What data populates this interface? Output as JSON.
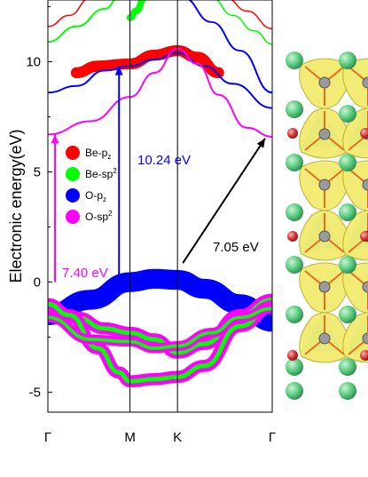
{
  "chart_data": {
    "type": "line",
    "xlabel": "",
    "ylabel": "Electronic energy(eV)",
    "ylim": [
      -5.9,
      12.8
    ],
    "yticks": [
      -5,
      0,
      5,
      10
    ],
    "kpoints": [
      "Γ",
      "M",
      "K",
      "Γ"
    ],
    "kpoint_positions": [
      0,
      0.577,
      0.911,
      1.577
    ],
    "grid": false,
    "legend_position": "left-middle",
    "legend": [
      {
        "base": "Be-p",
        "sub": "z",
        "sup": "",
        "color": "#ff0000"
      },
      {
        "base": "Be-sp",
        "sub": "",
        "sup": "2",
        "color": "#00ff00"
      },
      {
        "base": "O-p",
        "sub": "z",
        "sup": "",
        "color": "#0000ff"
      },
      {
        "base": "O-sp",
        "sub": "",
        "sup": "2",
        "color": "#ff00ff"
      }
    ],
    "series": [
      {
        "role": "valence-top",
        "color": "#0000ff",
        "points": [
          [
            0,
            -1.5
          ],
          [
            0.3,
            -0.8
          ],
          [
            0.577,
            0.0
          ],
          [
            0.75,
            0.15
          ],
          [
            0.911,
            0.1
          ],
          [
            1.1,
            -0.3
          ],
          [
            1.35,
            -1.0
          ],
          [
            1.577,
            -1.8
          ]
        ],
        "width": 0.9
      },
      {
        "role": "valence-mid",
        "color": "#ff00ff",
        "points": [
          [
            0,
            -1.2
          ],
          [
            0.2,
            -1.6
          ],
          [
            0.4,
            -2.1
          ],
          [
            0.577,
            -2.3
          ],
          [
            0.75,
            -2.6
          ],
          [
            0.911,
            -3.2
          ],
          [
            1.1,
            -2.8
          ],
          [
            1.35,
            -1.5
          ],
          [
            1.577,
            -0.8
          ]
        ],
        "width": 0.55
      },
      {
        "role": "valence-mid",
        "color": "#00ff00",
        "points": [
          [
            0,
            -1.2
          ],
          [
            0.2,
            -1.6
          ],
          [
            0.4,
            -2.1
          ],
          [
            0.577,
            -2.3
          ],
          [
            0.75,
            -2.6
          ],
          [
            0.911,
            -3.2
          ],
          [
            1.1,
            -2.8
          ],
          [
            1.35,
            -1.5
          ],
          [
            1.577,
            -0.8
          ]
        ],
        "width": 0.2
      },
      {
        "role": "valence-deep",
        "color": "#ff00ff",
        "points": [
          [
            0,
            -1.0
          ],
          [
            0.15,
            -1.5
          ],
          [
            0.35,
            -3.0
          ],
          [
            0.5,
            -4.1
          ],
          [
            0.577,
            -4.5
          ],
          [
            0.75,
            -4.4
          ],
          [
            0.911,
            -4.3
          ],
          [
            1.1,
            -3.8
          ],
          [
            1.35,
            -2.0
          ],
          [
            1.577,
            -1.1
          ]
        ],
        "width": 0.55
      },
      {
        "role": "valence-deep",
        "color": "#00ff00",
        "points": [
          [
            0,
            -1.0
          ],
          [
            0.15,
            -1.5
          ],
          [
            0.35,
            -3.0
          ],
          [
            0.5,
            -4.1
          ],
          [
            0.577,
            -4.5
          ],
          [
            0.75,
            -4.4
          ],
          [
            0.911,
            -4.3
          ],
          [
            1.1,
            -3.8
          ],
          [
            1.35,
            -2.0
          ],
          [
            1.577,
            -1.1
          ]
        ],
        "width": 0.2
      },
      {
        "role": "valence-third",
        "color": "#ff00ff",
        "points": [
          [
            0,
            -1.6
          ],
          [
            0.3,
            -2.6
          ],
          [
            0.577,
            -2.7
          ],
          [
            0.75,
            -3.0
          ],
          [
            0.911,
            -2.9
          ],
          [
            1.15,
            -2.3
          ],
          [
            1.35,
            -1.6
          ],
          [
            1.577,
            -1.2
          ]
        ],
        "width": 0.45
      },
      {
        "role": "valence-third",
        "color": "#00ff00",
        "points": [
          [
            0,
            -1.6
          ],
          [
            0.3,
            -2.6
          ],
          [
            0.577,
            -2.7
          ],
          [
            0.75,
            -3.0
          ],
          [
            0.911,
            -2.9
          ],
          [
            1.15,
            -2.3
          ],
          [
            1.35,
            -1.6
          ],
          [
            1.577,
            -1.2
          ]
        ],
        "width": 0.15
      },
      {
        "role": "conduction-flat",
        "color": "#ff0000",
        "points": [
          [
            0.2,
            9.5
          ],
          [
            0.35,
            9.8
          ],
          [
            0.577,
            9.9
          ],
          [
            0.75,
            10.3
          ],
          [
            0.911,
            10.5
          ],
          [
            1.05,
            10.2
          ],
          [
            1.2,
            9.5
          ]
        ],
        "width": 0.5
      },
      {
        "role": "conduction-1",
        "color": "#0000ff",
        "points": [
          [
            0,
            8.6
          ],
          [
            0.2,
            8.9
          ],
          [
            0.4,
            9.6
          ],
          [
            0.577,
            9.8
          ],
          [
            0.75,
            10.1
          ],
          [
            0.911,
            10.4
          ],
          [
            1.1,
            9.8
          ],
          [
            1.3,
            9.0
          ],
          [
            1.577,
            7.9
          ]
        ],
        "width": 0.08
      },
      {
        "role": "conduction-2",
        "color": "#ff00ff",
        "points": [
          [
            0,
            6.7
          ],
          [
            0.3,
            7.3
          ],
          [
            0.577,
            8.4
          ],
          [
            0.75,
            9.5
          ],
          [
            0.911,
            10.6
          ],
          [
            1.05,
            9.9
          ],
          [
            1.2,
            8.5
          ],
          [
            1.4,
            7.0
          ],
          [
            1.577,
            6.6
          ]
        ],
        "width": 0.08
      },
      {
        "role": "conduction-3",
        "color": "#00ff00",
        "points": [
          [
            0,
            10.9
          ],
          [
            0.2,
            11.6
          ],
          [
            0.4,
            12.4
          ],
          [
            0.5,
            12.9
          ]
        ],
        "width": 0.08
      },
      {
        "role": "conduction-4",
        "color": "#ff0000",
        "points": [
          [
            0,
            11.6
          ],
          [
            0.15,
            12.1
          ],
          [
            0.3,
            12.9
          ]
        ],
        "width": 0.06
      },
      {
        "role": "conduction-5",
        "color": "#00ff00",
        "points": [
          [
            0.577,
            12.0
          ],
          [
            0.62,
            12.3
          ],
          [
            0.68,
            12.9
          ]
        ],
        "width": 0.3
      },
      {
        "role": "conduction-6",
        "color": "#0000ff",
        "points": [
          [
            0.95,
            12.9
          ],
          [
            1.15,
            11.8
          ],
          [
            1.35,
            10.5
          ],
          [
            1.577,
            8.6
          ]
        ],
        "width": 0.08
      },
      {
        "role": "conduction-7",
        "color": "#00ff00",
        "points": [
          [
            1.15,
            12.9
          ],
          [
            1.3,
            12.1
          ],
          [
            1.45,
            11.4
          ],
          [
            1.577,
            10.8
          ]
        ],
        "width": 0.06
      },
      {
        "role": "conduction-8",
        "color": "#ff0000",
        "points": [
          [
            1.25,
            12.9
          ],
          [
            1.4,
            12.3
          ],
          [
            1.577,
            11.5
          ]
        ],
        "width": 0.06
      }
    ],
    "annotations": [
      {
        "text": "7.40 eV",
        "color": "#ff00ff",
        "x_from": 0.05,
        "y_from": 0.0,
        "y_to": 6.7
      },
      {
        "text": "10.24 eV",
        "color": "#0000ff",
        "x_from": 0.5,
        "y_from": 0.2,
        "y_to": 9.8
      },
      {
        "text": "7.05 eV",
        "color": "#000000",
        "x_from": 0.911,
        "y_from": 0.3,
        "x_to": 1.577,
        "y_to": 6.6
      }
    ]
  },
  "structure_panel": {
    "description_colors": {
      "isosurface": "#f2ec70",
      "isosurface_edge": "#b7ae2f",
      "cyan_region": "#53d1d6",
      "be_atom": "#55c77a",
      "o_atom": "#d03030",
      "bond": "#e07020"
    }
  }
}
